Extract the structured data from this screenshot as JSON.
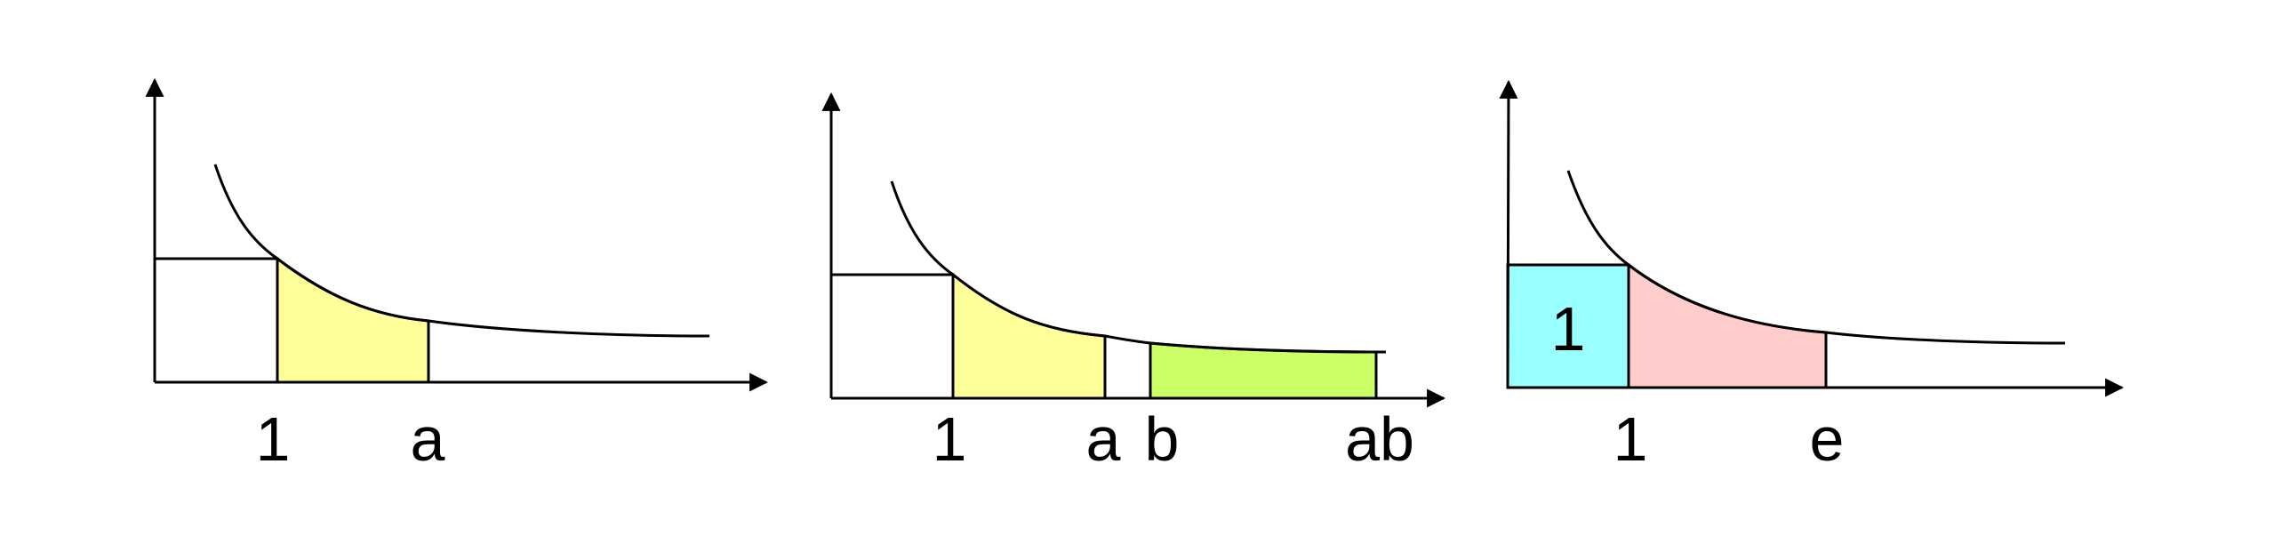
{
  "colors": {
    "yellow": "#ffff99",
    "green": "#ccff66",
    "cyan": "#99ffff",
    "pink": "#ffcccc",
    "line": "#000000"
  },
  "panels": [
    {
      "ticks": [
        "1",
        "a"
      ],
      "regions": [
        {
          "name": "region-1-to-a",
          "color": "yellow"
        }
      ]
    },
    {
      "ticks": [
        "1",
        "a",
        "b",
        "ab"
      ],
      "regions": [
        {
          "name": "region-1-to-a",
          "color": "yellow"
        },
        {
          "name": "region-b-to-ab",
          "color": "green"
        }
      ]
    },
    {
      "ticks": [
        "1",
        "e"
      ],
      "regions": [
        {
          "name": "unit-square",
          "color": "cyan",
          "label": "1"
        },
        {
          "name": "region-1-to-e",
          "color": "pink"
        }
      ]
    }
  ]
}
